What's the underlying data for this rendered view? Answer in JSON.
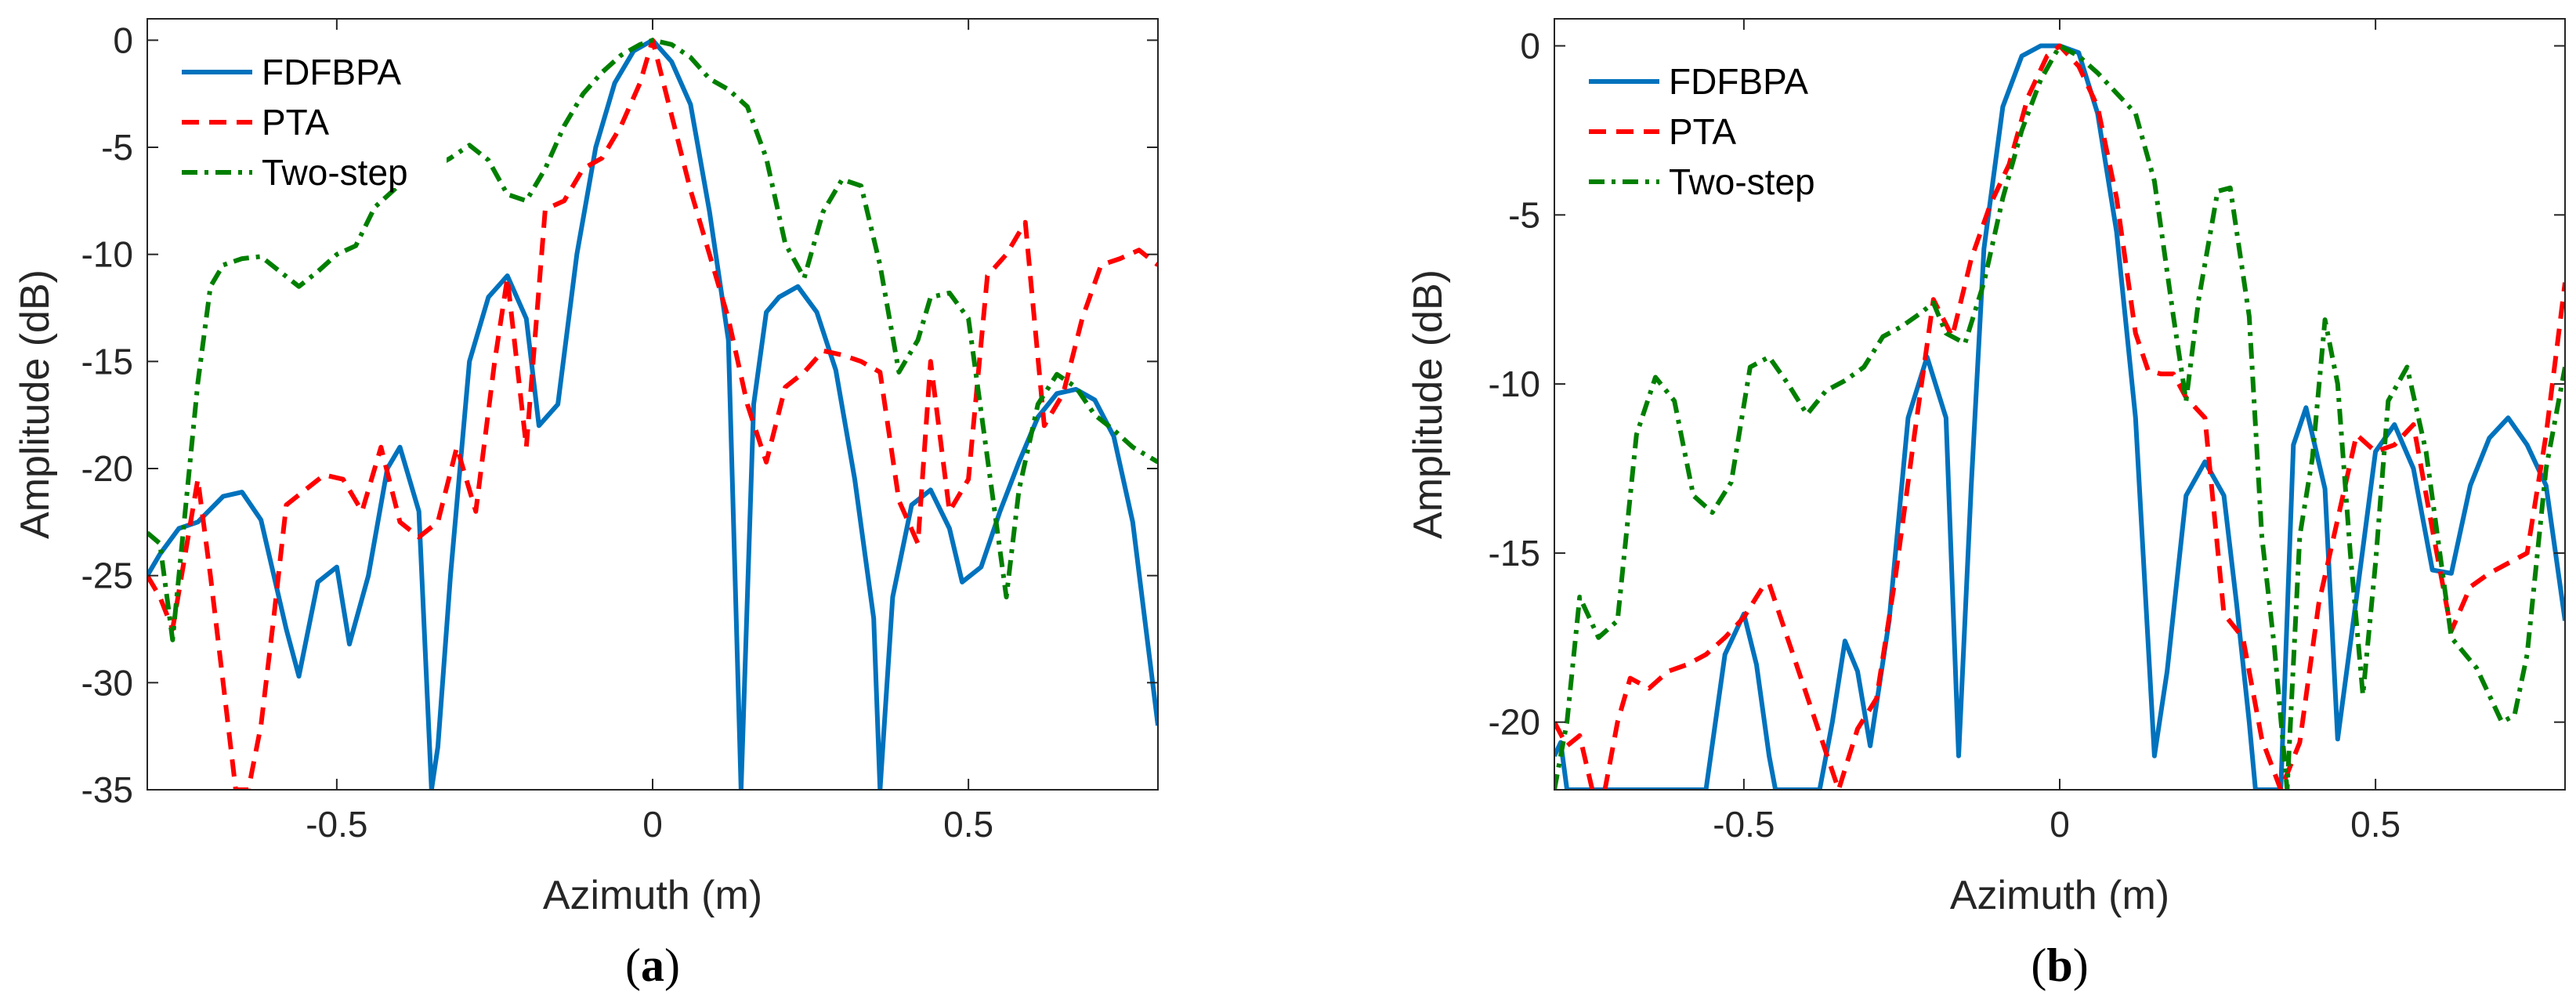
{
  "chart_data": [
    {
      "type": "line",
      "panel_label": {
        "open": "(",
        "letter": "a",
        "close": ")"
      },
      "xlabel": "Azimuth (m)",
      "ylabel": "Amplitude (dB)",
      "xlim": [
        -0.8,
        0.8
      ],
      "ylim": [
        -35,
        1
      ],
      "xticks": [
        -0.5,
        0,
        0.5
      ],
      "xtick_labels": [
        "-0.5",
        "0",
        "0.5"
      ],
      "yticks": [
        0,
        -5,
        -10,
        -15,
        -20,
        -25,
        -30,
        -35
      ],
      "ytick_labels": [
        "0",
        "-5",
        "-10",
        "-15",
        "-20",
        "-25",
        "-30",
        "-35"
      ],
      "legend_position": "top-left",
      "series": [
        {
          "name": "FDFBPA",
          "color": "#0072BD",
          "dash": "solid",
          "x": [
            -0.8,
            -0.78,
            -0.75,
            -0.72,
            -0.68,
            -0.65,
            -0.62,
            -0.58,
            -0.56,
            -0.53,
            -0.5,
            -0.48,
            -0.45,
            -0.42,
            -0.4,
            -0.37,
            -0.35,
            -0.34,
            -0.32,
            -0.29,
            -0.26,
            -0.23,
            -0.2,
            -0.18,
            -0.15,
            -0.12,
            -0.09,
            -0.06,
            -0.03,
            0,
            0.03,
            0.06,
            0.09,
            0.12,
            0.14,
            0.16,
            0.18,
            0.2,
            0.23,
            0.26,
            0.29,
            0.32,
            0.35,
            0.36,
            0.38,
            0.41,
            0.44,
            0.47,
            0.49,
            0.52,
            0.55,
            0.58,
            0.61,
            0.64,
            0.67,
            0.7,
            0.73,
            0.76,
            0.8
          ],
          "y": [
            -25,
            -24,
            -22.8,
            -22.5,
            -21.3,
            -21.1,
            -22.4,
            -27.5,
            -29.7,
            -25.3,
            -24.6,
            -28.2,
            -25,
            -20,
            -19,
            -22,
            -35,
            -33,
            -25,
            -15,
            -12,
            -11,
            -13,
            -18,
            -17,
            -10,
            -5,
            -2,
            -0.5,
            0,
            -1,
            -3,
            -8,
            -14,
            -35,
            -17,
            -12.7,
            -12,
            -11.5,
            -12.7,
            -15.4,
            -20.5,
            -27,
            -35,
            -26,
            -21.7,
            -21,
            -22.8,
            -25.3,
            -24.6,
            -22,
            -19.7,
            -17.6,
            -16.5,
            -16.3,
            -16.8,
            -18.5,
            -22.5,
            -32
          ]
        },
        {
          "name": "PTA",
          "color": "#FF0000",
          "dash": "dashed",
          "x": [
            -0.8,
            -0.78,
            -0.76,
            -0.74,
            -0.72,
            -0.7,
            -0.68,
            -0.66,
            -0.64,
            -0.62,
            -0.6,
            -0.58,
            -0.55,
            -0.52,
            -0.49,
            -0.46,
            -0.43,
            -0.4,
            -0.37,
            -0.34,
            -0.31,
            -0.28,
            -0.25,
            -0.23,
            -0.2,
            -0.17,
            -0.14,
            -0.11,
            -0.08,
            -0.05,
            -0.02,
            0,
            0.03,
            0.06,
            0.09,
            0.12,
            0.15,
            0.18,
            0.21,
            0.24,
            0.27,
            0.3,
            0.33,
            0.36,
            0.39,
            0.42,
            0.44,
            0.47,
            0.5,
            0.53,
            0.56,
            0.59,
            0.62,
            0.65,
            0.68,
            0.71,
            0.74,
            0.77,
            0.8
          ],
          "y": [
            -25,
            -26,
            -27.5,
            -24,
            -20.5,
            -25,
            -30,
            -35,
            -35,
            -32,
            -27,
            -21.7,
            -21,
            -20.3,
            -20.5,
            -22,
            -19,
            -22.5,
            -23.2,
            -22.5,
            -19,
            -22,
            -15,
            -11.1,
            -19,
            -7.9,
            -7.5,
            -6,
            -5.5,
            -4,
            -2,
            0,
            -3.5,
            -7,
            -10,
            -13,
            -17,
            -19.7,
            -16.2,
            -15.5,
            -14.5,
            -14.7,
            -15,
            -15.5,
            -21.5,
            -23.5,
            -15,
            -22,
            -20.5,
            -11,
            -10,
            -8.5,
            -18,
            -16.5,
            -13,
            -10.5,
            -10.2,
            -9.8,
            -10.5
          ]
        },
        {
          "name": "Two-step",
          "color": "#007F00",
          "dash": "dashdot",
          "x": [
            -0.8,
            -0.78,
            -0.76,
            -0.74,
            -0.72,
            -0.7,
            -0.68,
            -0.65,
            -0.62,
            -0.59,
            -0.56,
            -0.53,
            -0.5,
            -0.47,
            -0.44,
            -0.41,
            -0.38,
            -0.35,
            -0.32,
            -0.29,
            -0.26,
            -0.23,
            -0.2,
            -0.17,
            -0.14,
            -0.11,
            -0.08,
            -0.05,
            -0.02,
            0,
            0.03,
            0.06,
            0.09,
            0.12,
            0.15,
            0.18,
            0.21,
            0.24,
            0.27,
            0.3,
            0.33,
            0.36,
            0.39,
            0.42,
            0.44,
            0.47,
            0.5,
            0.53,
            0.56,
            0.58,
            0.61,
            0.64,
            0.67,
            0.7,
            0.73,
            0.76,
            0.8
          ],
          "y": [
            -23,
            -23.5,
            -28,
            -22,
            -16,
            -11.5,
            -10.5,
            -10.2,
            -10.1,
            -10.8,
            -11.5,
            -10.8,
            -10,
            -9.6,
            -7.8,
            -7,
            -6.2,
            -6,
            -5.5,
            -4.9,
            -5.6,
            -7.2,
            -7.5,
            -6,
            -4,
            -2.5,
            -1.5,
            -0.7,
            -0.2,
            0,
            -0.2,
            -0.8,
            -1.8,
            -2.3,
            -3.1,
            -5.5,
            -9.5,
            -11.1,
            -8,
            -6.5,
            -6.8,
            -10.5,
            -15.5,
            -14,
            -12,
            -11.8,
            -13,
            -19.5,
            -26,
            -21,
            -17,
            -15.6,
            -16.2,
            -17.5,
            -18.2,
            -19,
            -19.7
          ]
        }
      ]
    },
    {
      "type": "line",
      "panel_label": {
        "open": "(",
        "letter": "b",
        "close": ")"
      },
      "xlabel": "Azimuth (m)",
      "ylabel": "Amplitude (dB)",
      "xlim": [
        -0.8,
        0.8
      ],
      "ylim": [
        -22,
        0.8
      ],
      "xticks": [
        -0.5,
        0,
        0.5
      ],
      "xtick_labels": [
        "-0.5",
        "0",
        "0.5"
      ],
      "yticks": [
        0,
        -5,
        -10,
        -15,
        -20
      ],
      "ytick_labels": [
        "0",
        "-5",
        "-10",
        "-15",
        "-20"
      ],
      "legend_position": "top-left",
      "series": [
        {
          "name": "FDFBPA",
          "color": "#0072BD",
          "dash": "solid",
          "x": [
            -0.8,
            -0.79,
            -0.78,
            -0.56,
            -0.53,
            -0.5,
            -0.48,
            -0.46,
            -0.45,
            -0.38,
            -0.36,
            -0.34,
            -0.32,
            -0.3,
            -0.27,
            -0.24,
            -0.21,
            -0.18,
            -0.16,
            -0.14,
            -0.12,
            -0.09,
            -0.06,
            -0.03,
            0,
            0.03,
            0.06,
            0.09,
            0.12,
            0.15,
            0.17,
            0.2,
            0.23,
            0.26,
            0.28,
            0.3,
            0.31,
            0.35,
            0.37,
            0.39,
            0.42,
            0.44,
            0.47,
            0.5,
            0.53,
            0.56,
            0.59,
            0.62,
            0.65,
            0.68,
            0.71,
            0.74,
            0.77,
            0.8
          ],
          "y": [
            -21,
            -20.6,
            -22,
            -22,
            -18,
            -16.8,
            -18.3,
            -21,
            -22,
            -22,
            -20,
            -17.6,
            -18.5,
            -20.7,
            -17,
            -11,
            -9.2,
            -11,
            -21,
            -13,
            -6,
            -1.8,
            -0.3,
            0,
            0,
            -0.2,
            -2,
            -5.5,
            -11,
            -21,
            -18.5,
            -13.3,
            -12.3,
            -13.3,
            -16.5,
            -20,
            -22,
            -22,
            -11.8,
            -10.7,
            -13.1,
            -20.5,
            -16.3,
            -12,
            -11.2,
            -12.5,
            -15.5,
            -15.6,
            -13,
            -11.6,
            -11,
            -11.8,
            -13,
            -17
          ]
        },
        {
          "name": "PTA",
          "color": "#FF0000",
          "dash": "dashed",
          "x": [
            -0.8,
            -0.78,
            -0.76,
            -0.74,
            -0.72,
            -0.7,
            -0.68,
            -0.65,
            -0.62,
            -0.59,
            -0.56,
            -0.53,
            -0.5,
            -0.47,
            -0.46,
            -0.35,
            -0.32,
            -0.29,
            -0.26,
            -0.23,
            -0.2,
            -0.17,
            -0.14,
            -0.11,
            -0.08,
            -0.05,
            -0.02,
            0,
            0.03,
            0.06,
            0.09,
            0.12,
            0.14,
            0.16,
            0.18,
            0.2,
            0.23,
            0.26,
            0.29,
            0.32,
            0.35,
            0.38,
            0.41,
            0.44,
            0.47,
            0.5,
            0.53,
            0.56,
            0.59,
            0.62,
            0.65,
            0.68,
            0.71,
            0.74,
            0.77,
            0.8
          ],
          "y": [
            -20,
            -20.7,
            -20.4,
            -22,
            -22,
            -20,
            -18.7,
            -19,
            -18.5,
            -18.3,
            -18,
            -17.5,
            -16.9,
            -16,
            -15.9,
            -22,
            -20.2,
            -19.3,
            -15.7,
            -11.5,
            -7.5,
            -8.6,
            -6.3,
            -4.7,
            -3.5,
            -1.5,
            -0.3,
            0,
            -0.6,
            -1.8,
            -4.5,
            -8.5,
            -9.6,
            -9.7,
            -9.7,
            -10.4,
            -11,
            -16.8,
            -17.5,
            -20.5,
            -22,
            -20.6,
            -16.5,
            -14,
            -11.5,
            -12,
            -11.8,
            -11.2,
            -14.3,
            -17.3,
            -16,
            -15.6,
            -15.3,
            -15,
            -11.5,
            -7
          ]
        },
        {
          "name": "Two-step",
          "color": "#007F00",
          "dash": "dashdot",
          "x": [
            -0.8,
            -0.78,
            -0.76,
            -0.73,
            -0.7,
            -0.67,
            -0.64,
            -0.61,
            -0.58,
            -0.55,
            -0.52,
            -0.49,
            -0.46,
            -0.43,
            -0.4,
            -0.37,
            -0.34,
            -0.31,
            -0.28,
            -0.25,
            -0.22,
            -0.2,
            -0.18,
            -0.15,
            -0.12,
            -0.09,
            -0.06,
            -0.03,
            0,
            0.03,
            0.06,
            0.09,
            0.12,
            0.15,
            0.18,
            0.2,
            0.22,
            0.25,
            0.27,
            0.3,
            0.32,
            0.34,
            0.36,
            0.38,
            0.4,
            0.42,
            0.44,
            0.46,
            0.48,
            0.5,
            0.52,
            0.55,
            0.58,
            0.62,
            0.66,
            0.7,
            0.72,
            0.74,
            0.77,
            0.8
          ],
          "y": [
            -22,
            -20,
            -16.3,
            -17.5,
            -17,
            -11.5,
            -9.8,
            -10.5,
            -13.3,
            -13.8,
            -12.9,
            -9.5,
            -9.2,
            -10,
            -10.9,
            -10.2,
            -9.9,
            -9.5,
            -8.6,
            -8.3,
            -7.9,
            -7.6,
            -8.5,
            -8.8,
            -7,
            -4.5,
            -2.5,
            -1,
            0,
            -0.3,
            -0.8,
            -1.4,
            -2,
            -4,
            -8,
            -10.5,
            -7.5,
            -4.3,
            -4.2,
            -8,
            -14.5,
            -17.8,
            -22,
            -14.5,
            -12.2,
            -8.1,
            -10,
            -15,
            -19.2,
            -15.3,
            -10.5,
            -9.5,
            -12,
            -17.5,
            -18.4,
            -20,
            -19.8,
            -18,
            -12.5,
            -9.5
          ]
        }
      ]
    }
  ]
}
